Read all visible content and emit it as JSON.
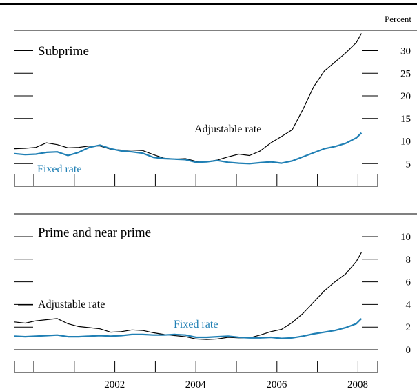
{
  "chart_data": [
    {
      "type": "line",
      "title": "Subprime",
      "ylabel": "Percent",
      "ylim": [
        0,
        35
      ],
      "yticks": [
        5,
        10,
        15,
        20,
        25,
        30
      ],
      "xlim": [
        2000.5,
        2009.0
      ],
      "grid": false,
      "series": [
        {
          "name": "Adjustable rate",
          "color": "#000000",
          "x": [
            2000.5,
            2000.75,
            2001.0,
            2001.25,
            2001.5,
            2001.75,
            2002.0,
            2002.25,
            2002.5,
            2002.75,
            2003.0,
            2003.25,
            2003.5,
            2003.75,
            2004.0,
            2004.25,
            2004.5,
            2004.75,
            2005.0,
            2005.25,
            2005.5,
            2005.75,
            2006.0,
            2006.25,
            2006.5,
            2006.75,
            2007.0,
            2007.25,
            2007.5,
            2007.75,
            2008.0,
            2008.25,
            2008.5,
            2008.62
          ],
          "values": [
            8.3,
            8.4,
            8.6,
            9.6,
            9.2,
            8.5,
            8.6,
            8.9,
            8.9,
            8.2,
            8.0,
            8.0,
            7.9,
            7.0,
            6.2,
            6.0,
            6.1,
            5.5,
            5.4,
            5.8,
            6.5,
            7.1,
            6.8,
            7.8,
            9.6,
            11.0,
            12.5,
            17.0,
            22.0,
            25.5,
            27.5,
            29.5,
            31.8,
            33.8
          ]
        },
        {
          "name": "Fixed rate",
          "color": "#1f7fb4",
          "x": [
            2000.5,
            2000.75,
            2001.0,
            2001.25,
            2001.5,
            2001.75,
            2002.0,
            2002.25,
            2002.5,
            2002.75,
            2003.0,
            2003.25,
            2003.5,
            2003.75,
            2004.0,
            2004.25,
            2004.5,
            2004.75,
            2005.0,
            2005.25,
            2005.5,
            2005.75,
            2006.0,
            2006.25,
            2006.5,
            2006.75,
            2007.0,
            2007.25,
            2007.5,
            2007.75,
            2008.0,
            2008.25,
            2008.5,
            2008.62
          ],
          "values": [
            7.2,
            7.0,
            7.1,
            7.5,
            7.6,
            6.8,
            7.5,
            8.6,
            9.1,
            8.3,
            7.8,
            7.6,
            7.3,
            6.4,
            6.1,
            6.0,
            5.9,
            5.3,
            5.4,
            5.7,
            5.3,
            5.1,
            5.0,
            5.2,
            5.4,
            5.1,
            5.6,
            6.5,
            7.4,
            8.3,
            8.8,
            9.5,
            10.7,
            11.8
          ]
        }
      ]
    },
    {
      "type": "line",
      "title": "Prime and near prime",
      "ylabel": "",
      "ylim": [
        0,
        10
      ],
      "yticks": [
        0,
        2,
        4,
        6,
        8,
        10
      ],
      "xlim": [
        2000.5,
        2009.0
      ],
      "xticks": [
        2002,
        2004,
        2006,
        2008
      ],
      "grid": false,
      "series": [
        {
          "name": "Adjustable rate",
          "color": "#000000",
          "x": [
            2000.5,
            2000.75,
            2001.0,
            2001.25,
            2001.5,
            2001.75,
            2002.0,
            2002.25,
            2002.5,
            2002.75,
            2003.0,
            2003.25,
            2003.5,
            2003.75,
            2004.0,
            2004.25,
            2004.5,
            2004.75,
            2005.0,
            2005.25,
            2005.5,
            2005.75,
            2006.0,
            2006.25,
            2006.5,
            2006.75,
            2007.0,
            2007.25,
            2007.5,
            2007.75,
            2008.0,
            2008.25,
            2008.5,
            2008.62
          ],
          "values": [
            2.45,
            2.35,
            2.55,
            2.65,
            2.75,
            2.3,
            2.05,
            1.95,
            1.85,
            1.55,
            1.6,
            1.75,
            1.7,
            1.5,
            1.35,
            1.25,
            1.15,
            0.95,
            0.9,
            0.95,
            1.1,
            1.05,
            1.05,
            1.3,
            1.6,
            1.8,
            2.4,
            3.2,
            4.2,
            5.2,
            6.0,
            6.7,
            7.8,
            8.6
          ]
        },
        {
          "name": "Fixed rate",
          "color": "#1f7fb4",
          "x": [
            2000.5,
            2000.75,
            2001.0,
            2001.25,
            2001.5,
            2001.75,
            2002.0,
            2002.25,
            2002.5,
            2002.75,
            2003.0,
            2003.25,
            2003.5,
            2003.75,
            2004.0,
            2004.25,
            2004.5,
            2004.75,
            2005.0,
            2005.25,
            2005.5,
            2005.75,
            2006.0,
            2006.25,
            2006.5,
            2006.75,
            2007.0,
            2007.25,
            2007.5,
            2007.75,
            2008.0,
            2008.25,
            2008.5,
            2008.62
          ],
          "values": [
            1.2,
            1.15,
            1.2,
            1.25,
            1.3,
            1.15,
            1.15,
            1.2,
            1.25,
            1.2,
            1.25,
            1.35,
            1.35,
            1.3,
            1.3,
            1.35,
            1.3,
            1.1,
            1.1,
            1.15,
            1.2,
            1.1,
            1.05,
            1.05,
            1.1,
            1.0,
            1.05,
            1.2,
            1.4,
            1.55,
            1.7,
            1.95,
            2.3,
            2.75
          ]
        }
      ]
    }
  ]
}
